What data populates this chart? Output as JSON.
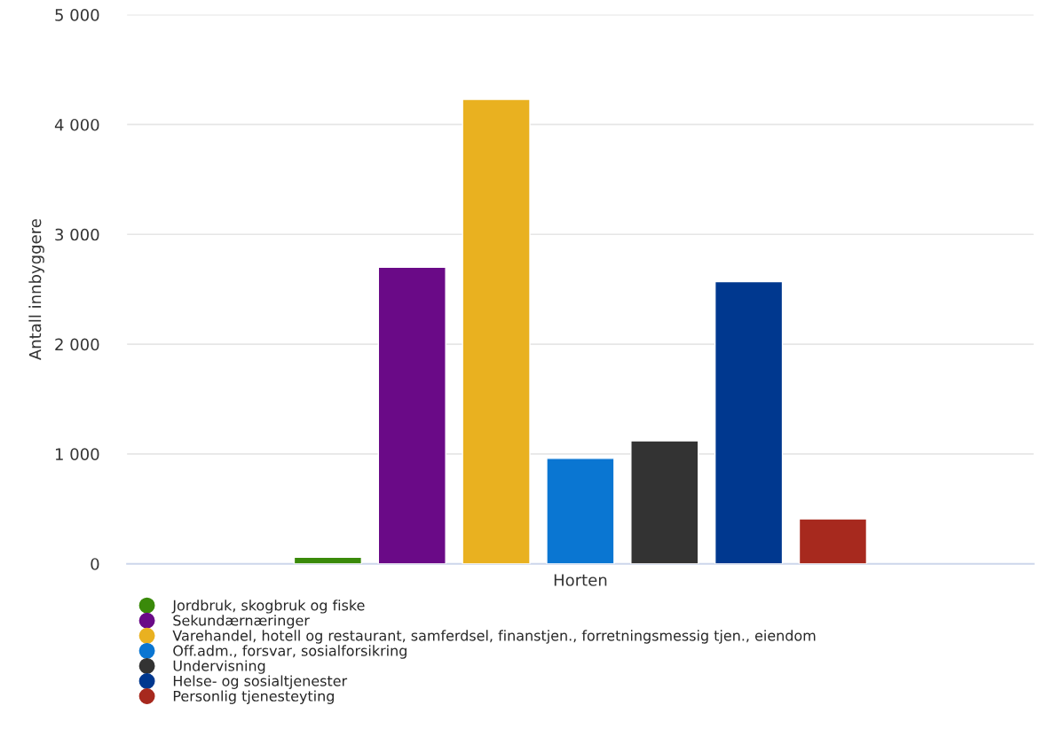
{
  "chart_data": {
    "type": "bar",
    "ylabel": "Antall innbyggere",
    "categories": [
      "Horten"
    ],
    "series": [
      {
        "name": "Jordbruk, skogbruk og fiske",
        "color": "#3a8a0a",
        "values": [
          60
        ]
      },
      {
        "name": "Sekundærnæringer",
        "color": "#6a0a87",
        "values": [
          2700
        ]
      },
      {
        "name": "Varehandel, hotell og restaurant, samferdsel, finanstjen., forretningsmessig tjen., eiendom",
        "color": "#e9b120",
        "values": [
          4230
        ]
      },
      {
        "name": "Off.adm., forsvar, sosialforsikring",
        "color": "#0a76d2",
        "values": [
          960
        ]
      },
      {
        "name": "Undervisning",
        "color": "#333333",
        "values": [
          1120
        ]
      },
      {
        "name": "Helse- og sosialtjenester",
        "color": "#00388f",
        "values": [
          2570
        ]
      },
      {
        "name": "Personlig tjenesteyting",
        "color": "#a7291e",
        "values": [
          410
        ]
      }
    ],
    "ylim": [
      0,
      5000
    ],
    "yticks": [
      {
        "value": 0,
        "label": "0"
      },
      {
        "value": 1000,
        "label": "1 000"
      },
      {
        "value": 2000,
        "label": "2 000"
      },
      {
        "value": 3000,
        "label": "3 000"
      },
      {
        "value": 4000,
        "label": "4 000"
      },
      {
        "value": 5000,
        "label": "5 000"
      }
    ],
    "grid": "y",
    "legend": "bottom"
  }
}
